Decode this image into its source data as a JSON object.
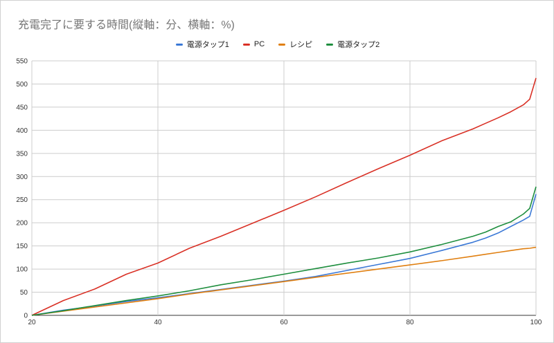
{
  "chart_data": {
    "type": "line",
    "title": "充電完了に要する時間(縦軸：分、横軸：%)",
    "xlabel": "",
    "ylabel": "",
    "xlim": [
      20,
      100
    ],
    "ylim": [
      0,
      550
    ],
    "x_ticks": [
      20,
      40,
      60,
      80,
      100
    ],
    "y_ticks": [
      0,
      50,
      100,
      150,
      200,
      250,
      300,
      350,
      400,
      450,
      500,
      550
    ],
    "grid": true,
    "legend_position": "top",
    "x": [
      20,
      25,
      30,
      35,
      40,
      45,
      50,
      55,
      60,
      65,
      70,
      75,
      80,
      85,
      90,
      92,
      94,
      96,
      98,
      99,
      100
    ],
    "series": [
      {
        "name": "電源タップ1",
        "color": "#3a78d6",
        "values": [
          0,
          11,
          20,
          30,
          38,
          47,
          56,
          65,
          74,
          84,
          97,
          110,
          123,
          140,
          158,
          167,
          178,
          192,
          206,
          214,
          262
        ]
      },
      {
        "name": "PC",
        "color": "#d93025",
        "values": [
          0,
          32,
          57,
          89,
          113,
          145,
          171,
          199,
          227,
          256,
          287,
          317,
          346,
          377,
          403,
          415,
          427,
          440,
          455,
          467,
          513
        ]
      },
      {
        "name": "レシピ",
        "color": "#e07f10",
        "values": [
          0,
          9,
          18,
          27,
          36,
          46,
          55,
          64,
          73,
          82,
          91,
          100,
          109,
          118,
          128,
          132,
          136,
          140,
          144,
          145,
          147
        ]
      },
      {
        "name": "電源タップ2",
        "color": "#1e8e3e",
        "values": [
          0,
          10,
          21,
          32,
          42,
          53,
          66,
          77,
          89,
          101,
          113,
          124,
          137,
          153,
          171,
          180,
          192,
          202,
          219,
          231,
          278
        ]
      }
    ]
  }
}
